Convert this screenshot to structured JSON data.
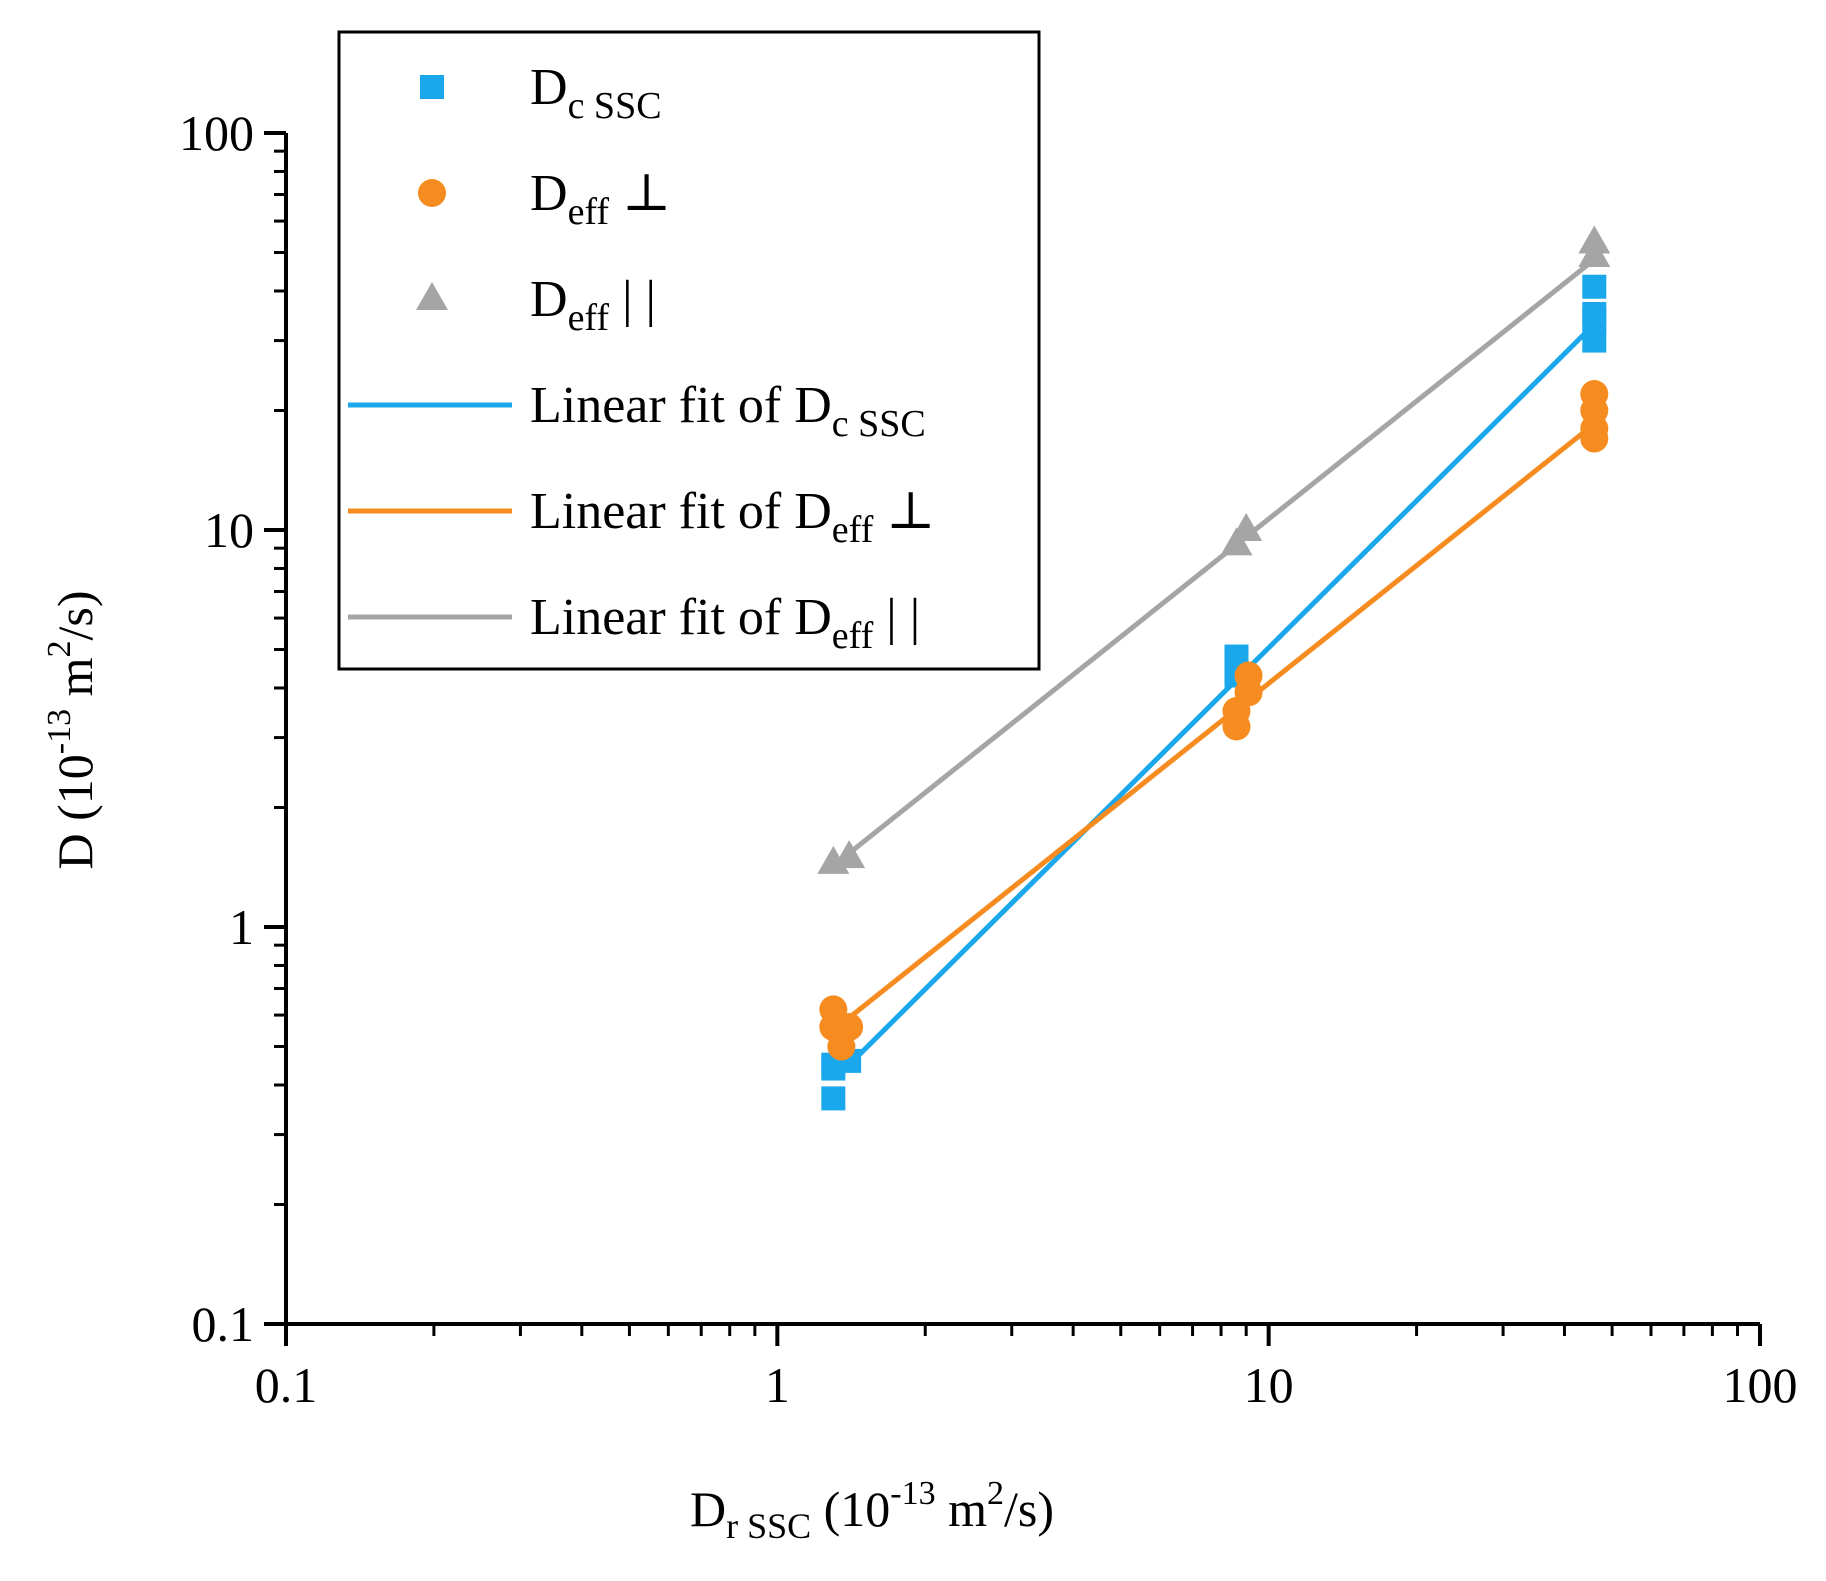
{
  "chart_data": {
    "type": "scatter",
    "xscale": "log",
    "yscale": "log",
    "xlim": [
      0.1,
      100
    ],
    "ylim": [
      0.1,
      100
    ],
    "xticks": [
      "0.1",
      "1",
      "10",
      "100"
    ],
    "yticks": [
      "0.1",
      "1",
      "10",
      "100"
    ],
    "xlabel": {
      "main": "D",
      "sub": "r SSC",
      "paren_open": " (10",
      "sup1": "-13",
      "unit_mid": " m",
      "sup2": "2",
      "unit_end": "/s)"
    },
    "ylabel": {
      "main": "D (10",
      "sup1": "-13",
      "unit_mid": " m",
      "sup2": "2",
      "unit_end": "/s)"
    },
    "legend_position": "top-left",
    "series": [
      {
        "name": "D c SSC",
        "label_main": "D",
        "label_sub": "c SSC",
        "label_suffix": "",
        "marker": "square",
        "color": "#1aa7ec",
        "x": [
          1.3,
          1.3,
          1.3,
          1.4,
          8.6,
          8.6,
          8.6,
          46,
          46,
          46,
          46
        ],
        "y": [
          0.37,
          0.44,
          0.45,
          0.46,
          4.3,
          4.6,
          4.8,
          30,
          34,
          35,
          41
        ]
      },
      {
        "name": "D eff ⊥",
        "label_main": "D",
        "label_sub": "eff",
        "label_suffix": " ⊥",
        "marker": "circle",
        "color": "#f68b1f",
        "x": [
          1.3,
          1.3,
          1.35,
          1.4,
          8.6,
          8.6,
          9.1,
          9.1,
          46,
          46,
          46,
          46
        ],
        "y": [
          0.62,
          0.56,
          0.5,
          0.56,
          3.2,
          3.5,
          3.9,
          4.3,
          17,
          18,
          20,
          22
        ]
      },
      {
        "name": "D eff ||",
        "label_main": "D",
        "label_sub": "eff",
        "label_suffix": " | |",
        "marker": "triangle",
        "color": "#a5a5a5",
        "x": [
          1.3,
          1.4,
          8.6,
          9.0,
          46,
          46
        ],
        "y": [
          1.45,
          1.5,
          9.2,
          10,
          49,
          53
        ]
      }
    ],
    "fits": [
      {
        "name": "Linear fit of D c SSC",
        "label_main": "Linear fit of D",
        "label_sub": "c SSC",
        "label_suffix": "",
        "color": "#1aa7ec",
        "x": [
          1.35,
          46
        ],
        "y": [
          0.43,
          33
        ]
      },
      {
        "name": "Linear fit of D eff ⊥",
        "label_main": "Linear fit of D",
        "label_sub": "eff",
        "label_suffix": " ⊥",
        "color": "#f68b1f",
        "x": [
          1.35,
          46
        ],
        "y": [
          0.57,
          18.5
        ]
      },
      {
        "name": "Linear fit of D eff ||",
        "label_main": "Linear fit of D",
        "label_sub": "eff",
        "label_suffix": " | |",
        "color": "#a5a5a5",
        "x": [
          1.35,
          46
        ],
        "y": [
          1.48,
          48
        ]
      }
    ]
  }
}
